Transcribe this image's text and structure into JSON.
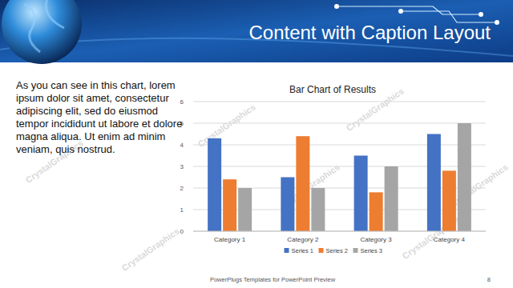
{
  "slide": {
    "title": "Content with Caption Layout",
    "caption": "As you can see in this chart, lorem ipsum dolor sit amet, consectetur adipiscing elit, sed do eiusmod tempor incididunt ut labore et dolore magna aliqua. Ut enim ad minim veniam, quis nostrud.",
    "footer": "PowerPlugs Templates for PowerPoint Preview",
    "page_number": 8,
    "watermark": "CrystalGraphics"
  },
  "chart_data": {
    "type": "bar",
    "title": "Bar Chart of Results",
    "categories": [
      "Category 1",
      "Category 2",
      "Category 3",
      "Category 4"
    ],
    "series": [
      {
        "name": "Series 1",
        "color": "#4472c4",
        "values": [
          4.3,
          2.5,
          3.5,
          4.5
        ]
      },
      {
        "name": "Series 2",
        "color": "#ed7d31",
        "values": [
          2.4,
          4.4,
          1.8,
          2.8
        ]
      },
      {
        "name": "Series 3",
        "color": "#a5a5a5",
        "values": [
          2,
          2,
          3,
          5
        ]
      }
    ],
    "ylim": [
      0,
      6
    ],
    "yticks": [
      0,
      1,
      2,
      3,
      4,
      5,
      6
    ],
    "grid": true,
    "legend": "bottom"
  }
}
